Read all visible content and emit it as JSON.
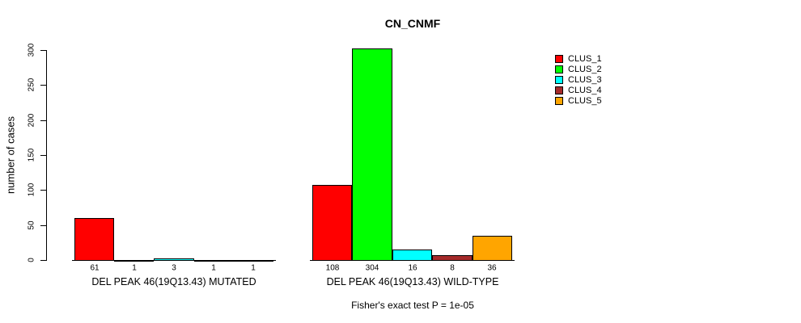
{
  "title": "CN_CNMF",
  "y_axis": {
    "label": "number of cases"
  },
  "annotation": "Fisher's exact test P = 1e-05",
  "chart_data": {
    "type": "bar",
    "title": "CN_CNMF",
    "xlabel": "",
    "ylabel": "number of cases",
    "ylim": [
      0,
      300
    ],
    "yticks": [
      0,
      50,
      100,
      150,
      200,
      250,
      300
    ],
    "grid": false,
    "legend_position": "top-right",
    "clusters": [
      {
        "name": "CLUS_1",
        "color": "#ff0000"
      },
      {
        "name": "CLUS_2",
        "color": "#00ff00"
      },
      {
        "name": "CLUS_3",
        "color": "#00ffff"
      },
      {
        "name": "CLUS_4",
        "color": "#a52a2a"
      },
      {
        "name": "CLUS_5",
        "color": "#ffa500"
      }
    ],
    "groups": [
      {
        "label": "DEL PEAK 46(19Q13.43) MUTATED",
        "values": [
          61,
          1,
          3,
          1,
          1
        ]
      },
      {
        "label": "DEL PEAK 46(19Q13.43) WILD-TYPE",
        "values": [
          108,
          304,
          16,
          8,
          36
        ]
      }
    ],
    "bar_value_labels": true,
    "annotation": "Fisher's exact test P = 1e-05"
  }
}
